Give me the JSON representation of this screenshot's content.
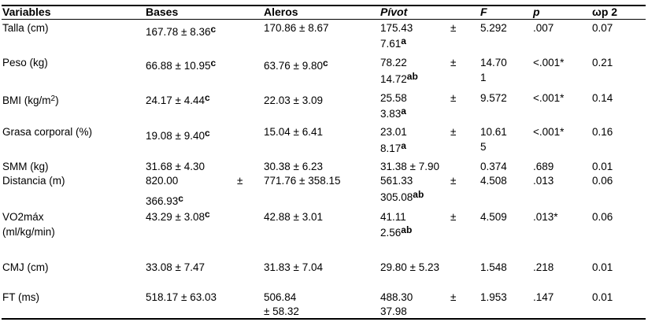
{
  "headers": [
    "Variables",
    "Bases",
    "Aleros",
    "Pívot",
    "F",
    "p",
    "ωp 2"
  ],
  "rows": [
    {
      "variable": "Talla (cm)",
      "bases": {
        "text": "167.78 ± 8.36",
        "sup": "c"
      },
      "aleros": {
        "text": "170.86 ± 8.67"
      },
      "pivot": {
        "line1": "175.43",
        "pm": "±",
        "line2": "7.61",
        "sup": "a"
      },
      "f": {
        "line1": "5.292"
      },
      "p": ".007",
      "wp2": "0.07"
    },
    {
      "variable": "Peso (kg)",
      "bases": {
        "text": "66.88 ± 10.95",
        "sup": "c"
      },
      "aleros": {
        "text": "63.76 ± 9.80",
        "sup": "c"
      },
      "pivot": {
        "line1": "78.22",
        "pm": "±",
        "line2": "14.72",
        "sup": "ab"
      },
      "f": {
        "line1": "14.70",
        "line2": "1"
      },
      "p": "<.001*",
      "wp2": "0.21"
    },
    {
      "variable": "BMI (kg/m",
      "variable_sup": "2",
      "variable_end": ")",
      "bases": {
        "text": "24.17 ± 4.44",
        "sup": "c"
      },
      "aleros": {
        "text": "22.03 ± 3.09"
      },
      "pivot": {
        "line1": "25.58",
        "pm": "±",
        "line2": "3.83",
        "sup": "a"
      },
      "f": {
        "line1": "9.572"
      },
      "p": "<.001*",
      "wp2": "0.14"
    },
    {
      "variable": "Grasa corporal (%)",
      "bases": {
        "text": "19.08 ± 9.40",
        "sup": "c"
      },
      "aleros": {
        "text": "15.04 ± 6.41"
      },
      "pivot": {
        "line1": "23.01",
        "pm": "±",
        "line2": "8.17",
        "sup": "a"
      },
      "f": {
        "line1": "10.61",
        "line2": "5"
      },
      "p": "<.001*",
      "wp2": "0.16"
    },
    {
      "variable": "SMM (kg)",
      "bases": {
        "text": "31.68 ± 4.30"
      },
      "aleros": {
        "text": "30.38 ± 6.23"
      },
      "pivot": {
        "line1": "31.38 ± 7.90"
      },
      "f": {
        "line1": "0.374"
      },
      "p": ".689",
      "wp2": "0.01"
    },
    {
      "variable": "Distancia (m)",
      "bases": {
        "line1": "820.00",
        "pm": "±",
        "line2": "366.93",
        "sup": "c"
      },
      "aleros": {
        "text": "771.76 ± 358.15"
      },
      "pivot": {
        "line1": "561.33",
        "pm": "±",
        "line2": "305.08",
        "sup": "ab"
      },
      "f": {
        "line1": "4.508"
      },
      "p": ".013",
      "wp2": "0.06"
    },
    {
      "variable": "VO2máx",
      "variable_line2": "(ml/kg/min)",
      "bases": {
        "text": "43.29 ± 3.08",
        "sup": "c"
      },
      "aleros": {
        "text": "42.88 ± 3.01"
      },
      "pivot": {
        "line1": "41.11",
        "pm": "±",
        "line2": "2.56",
        "sup": "ab"
      },
      "f": {
        "line1": "4.509"
      },
      "p": ".013*",
      "wp2": "0.06"
    },
    {
      "variable": "CMJ (cm)",
      "bases": {
        "text": "33.08 ± 7.47"
      },
      "aleros": {
        "text": "31.83 ± 7.04"
      },
      "pivot": {
        "line1": "29.80 ± 5.23"
      },
      "f": {
        "line1": "1.548"
      },
      "p": ".218",
      "wp2": "0.01"
    },
    {
      "variable": "FT (ms)",
      "bases": {
        "text": "518.17 ± 63.03"
      },
      "aleros": {
        "text": "506.84",
        "line2": "± 58.32"
      },
      "pivot": {
        "line1": "488.30",
        "pm": "±",
        "line2": "37.98"
      },
      "f": {
        "line1": "1.953"
      },
      "p": ".147",
      "wp2": "0.01"
    }
  ]
}
